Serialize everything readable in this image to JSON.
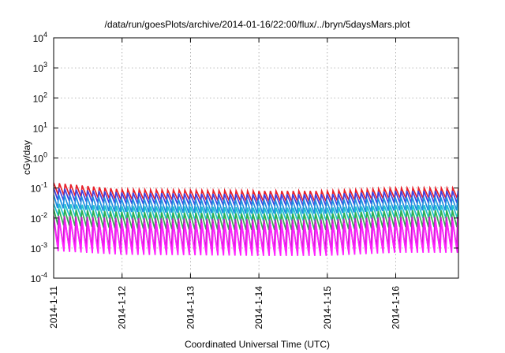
{
  "chart_data": {
    "type": "line",
    "title": "/data/run/goesPlots/archive/2014-01-16/22:00/flux/../bryn/5daysMars.plot",
    "xlabel": "Coordinated Universal Time (UTC)",
    "ylabel": "cGy/day",
    "yscale": "log",
    "ylim": [
      0.0001,
      10000
    ],
    "yticks": [
      {
        "base": "10",
        "exp": "4"
      },
      {
        "base": "10",
        "exp": "3"
      },
      {
        "base": "10",
        "exp": "2"
      },
      {
        "base": "10",
        "exp": "1"
      },
      {
        "base": "10",
        "exp": "0"
      },
      {
        "base": "10",
        "exp": "-1"
      },
      {
        "base": "10",
        "exp": "-2"
      },
      {
        "base": "10",
        "exp": "-3"
      },
      {
        "base": "10",
        "exp": "-4"
      }
    ],
    "xlim": [
      "2014-01-11",
      "2014-01-16 22:00"
    ],
    "xticks": [
      "2014-1-11",
      "2014-1-12",
      "2014-1-13",
      "2014-1-14",
      "2014-1-15",
      "2014-1-16"
    ],
    "grid": true,
    "sawtooth_period_hours": 2.0,
    "series": [
      {
        "color": "#e8202a",
        "peak": [
          0.15,
          0.09,
          0.085,
          0.08,
          0.08,
          0.1
        ],
        "trough": [
          0.06,
          0.04,
          0.04,
          0.035,
          0.035,
          0.045
        ]
      },
      {
        "color": "#4040e0",
        "peak": [
          0.1,
          0.07,
          0.065,
          0.062,
          0.062,
          0.08
        ],
        "trough": [
          0.04,
          0.03,
          0.028,
          0.026,
          0.026,
          0.032
        ]
      },
      {
        "color": "#1e90e0",
        "peak": [
          0.06,
          0.045,
          0.042,
          0.04,
          0.04,
          0.05
        ],
        "trough": [
          0.022,
          0.016,
          0.015,
          0.014,
          0.014,
          0.018
        ]
      },
      {
        "color": "#20c0d0",
        "peak": [
          0.03,
          0.025,
          0.024,
          0.022,
          0.022,
          0.027
        ],
        "trough": [
          0.012,
          0.009,
          0.0085,
          0.008,
          0.008,
          0.01
        ]
      },
      {
        "color": "#30b050",
        "peak": [
          0.02,
          0.016,
          0.015,
          0.014,
          0.014,
          0.018
        ],
        "trough": [
          0.006,
          0.0045,
          0.0042,
          0.004,
          0.004,
          0.005
        ]
      },
      {
        "color": "#c020c0",
        "peak": [
          0.012,
          0.01,
          0.0095,
          0.009,
          0.009,
          0.011
        ],
        "trough": [
          0.0012,
          0.0009,
          0.00085,
          0.0008,
          0.0008,
          0.001
        ]
      },
      {
        "color": "#ff20ff",
        "peak": [
          0.009,
          0.007,
          0.0068,
          0.0065,
          0.0065,
          0.008
        ],
        "trough": [
          0.0008,
          0.0006,
          0.00058,
          0.00055,
          0.00055,
          0.0007
        ]
      }
    ]
  }
}
